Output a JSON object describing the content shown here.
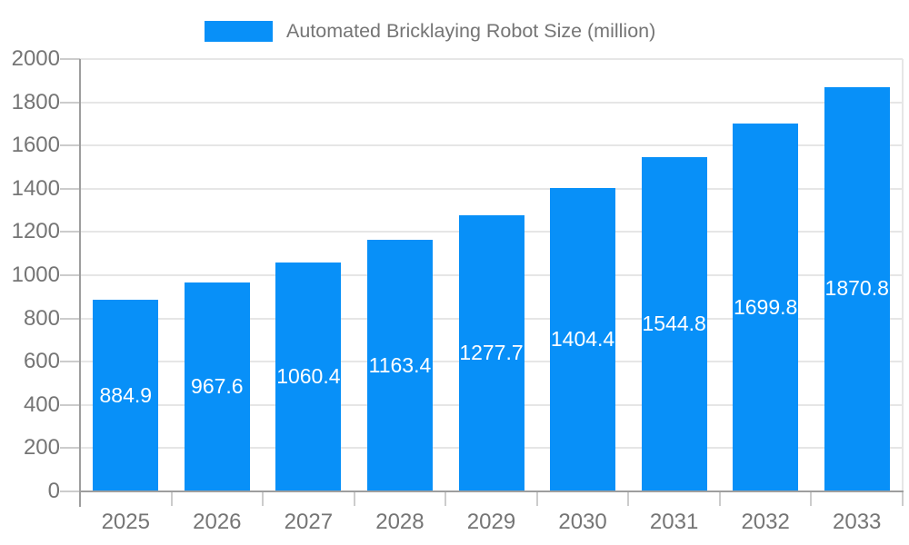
{
  "chart_data": {
    "type": "bar",
    "title": "Automated Bricklaying Robot Size (million)",
    "legend": [
      "Automated Bricklaying Robot Size (million)"
    ],
    "legend_position": "top",
    "categories": [
      "2025",
      "2026",
      "2027",
      "2028",
      "2029",
      "2030",
      "2031",
      "2032",
      "2033"
    ],
    "series": [
      {
        "name": "Automated Bricklaying Robot Size (million)",
        "values": [
          884.9,
          967.6,
          1060.4,
          1163.4,
          1277.7,
          1404.4,
          1544.8,
          1699.8,
          1870.8
        ]
      }
    ],
    "value_labels": [
      "884.9",
      "967.6",
      "1060.4",
      "1163.4",
      "1277.7",
      "1404.4",
      "1544.8",
      "1699.8",
      "1870.8"
    ],
    "xlabel": "",
    "ylabel": "",
    "ylim": [
      0,
      2000
    ],
    "ytick_step": 200,
    "ytick_labels": [
      "0",
      "200",
      "400",
      "600",
      "800",
      "1000",
      "1200",
      "1400",
      "1600",
      "1800",
      "2000"
    ],
    "grid": true,
    "colors": {
      "bar": "#0890f8",
      "bar_value_text": "#ffffff",
      "axis_text": "#757575",
      "legend_text": "#757575",
      "gridline": "#e6e6e6",
      "tick": "#cccccc",
      "axis_line": "#9e9e9e",
      "background": "#ffffff"
    }
  }
}
